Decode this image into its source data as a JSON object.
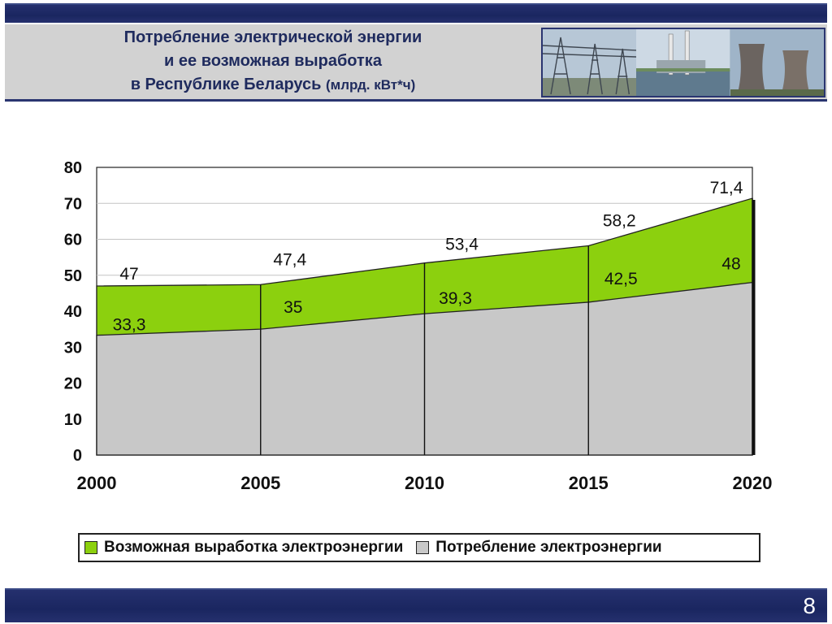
{
  "header": {
    "title_line1": "Потребление электрической энергии",
    "title_line2": "и ее возможная выработка",
    "title_line3": "в Республике Беларусь",
    "title_unit": "(млрд. кВт*ч)"
  },
  "page_number": "8",
  "colors": {
    "green_fill": "#8cd00e",
    "gray_fill": "#c8c8c8",
    "bar_navy": "#1a2660"
  },
  "chart_data": {
    "type": "area",
    "x": [
      "2000",
      "2005",
      "2010",
      "2015",
      "2020"
    ],
    "ylim": [
      0,
      80
    ],
    "yticks": [
      "0",
      "10",
      "20",
      "30",
      "40",
      "50",
      "60",
      "70",
      "80"
    ],
    "grid": true,
    "series": [
      {
        "name": "Возможная выработка электроэнергии",
        "values": [
          47,
          47.4,
          53.4,
          58.2,
          71.4
        ],
        "labels": [
          "47",
          "47,4",
          "53,4",
          "58,2",
          "71,4"
        ],
        "color": "#8cd00e"
      },
      {
        "name": "Потребление электроэнергии",
        "values": [
          33.3,
          35,
          39.3,
          42.5,
          48
        ],
        "labels": [
          "33,3",
          "35",
          "39,3",
          "42,5",
          "48"
        ],
        "color": "#c8c8c8"
      }
    ],
    "legend": "bottom"
  }
}
